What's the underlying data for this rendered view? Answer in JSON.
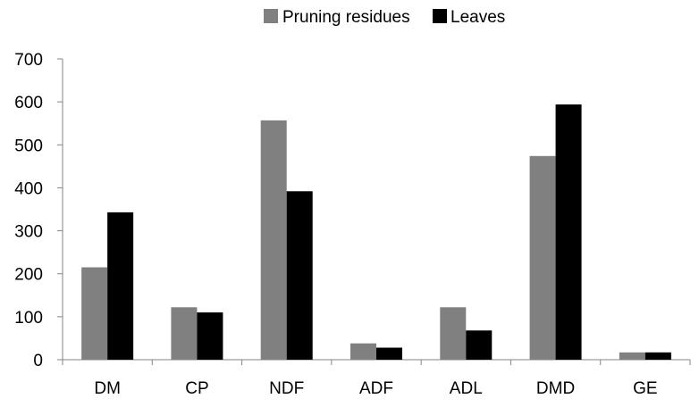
{
  "chart_data": {
    "type": "bar",
    "title": "",
    "xlabel": "",
    "ylabel": "",
    "categories": [
      "DM",
      "CP",
      "NDF",
      "ADF",
      "ADL",
      "DMD",
      "GE"
    ],
    "series": [
      {
        "name": "Pruning residues",
        "color": "#808080",
        "values": [
          215,
          122,
          557,
          38,
          122,
          474,
          17
        ]
      },
      {
        "name": "Leaves",
        "color": "#000000",
        "values": [
          343,
          110,
          392,
          28,
          68,
          594,
          17
        ]
      }
    ],
    "ylim": [
      0,
      700
    ],
    "yticks": [
      "0",
      "100",
      "200",
      "300",
      "400",
      "500",
      "600",
      "700"
    ],
    "grid": false,
    "legend_position": "top"
  }
}
